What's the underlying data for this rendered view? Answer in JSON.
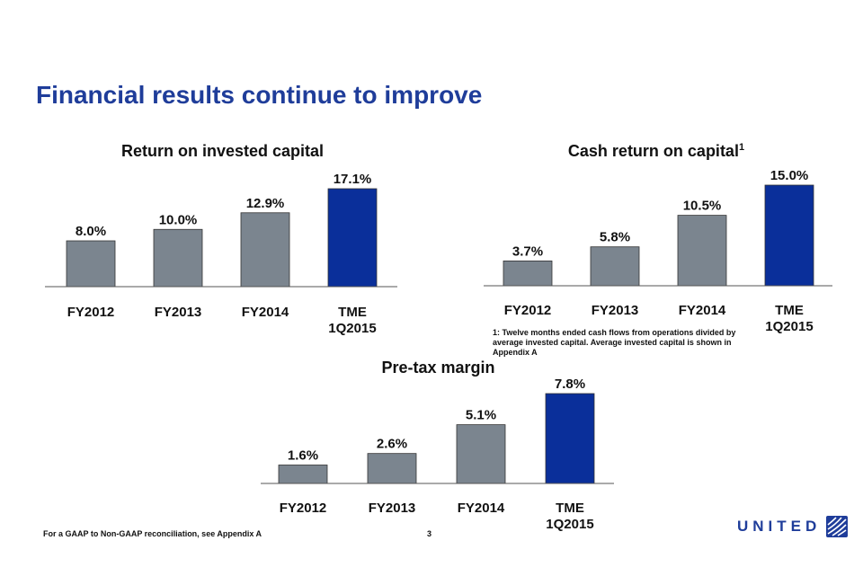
{
  "page": {
    "title": "Financial results continue to improve",
    "source_note": "For a GAAP to Non-GAAP reconciliation, see Appendix A",
    "page_number": "3",
    "logo_text": "UNITED",
    "footnote": "1: Twelve months ended cash flows from operations divided by average invested capital.  Average invested capital is shown in Appendix A"
  },
  "colors": {
    "title": "#1f3d9a",
    "bar_gray": "#7b858f",
    "bar_highlight": "#0a2f9a"
  },
  "chart_data": [
    {
      "type": "bar",
      "title": "Return on invested capital",
      "title_sup": "",
      "categories": [
        [
          "FY2012"
        ],
        [
          "FY2013"
        ],
        [
          "FY2014"
        ],
        [
          "TME",
          "1Q2015"
        ]
      ],
      "values": [
        8.0,
        10.0,
        12.9,
        17.1
      ],
      "data_labels": [
        "8.0%",
        "10.0%",
        "12.9%",
        "17.1%"
      ],
      "highlight_index": 3,
      "ylim": [
        0,
        17.1
      ],
      "xlabel": "",
      "ylabel": "",
      "grid": false,
      "legend": "none"
    },
    {
      "type": "bar",
      "title": "Cash return on capital",
      "title_sup": "1",
      "categories": [
        [
          "FY2012"
        ],
        [
          "FY2013"
        ],
        [
          "FY2014"
        ],
        [
          "TME",
          "1Q2015"
        ]
      ],
      "values": [
        3.7,
        5.8,
        10.5,
        15.0
      ],
      "data_labels": [
        "3.7%",
        "5.8%",
        "10.5%",
        "15.0%"
      ],
      "highlight_index": 3,
      "ylim": [
        0,
        15.0
      ],
      "xlabel": "",
      "ylabel": "",
      "grid": false,
      "legend": "none"
    },
    {
      "type": "bar",
      "title": "Pre-tax margin",
      "title_sup": "",
      "categories": [
        [
          "FY2012"
        ],
        [
          "FY2013"
        ],
        [
          "FY2014"
        ],
        [
          "TME",
          "1Q2015"
        ]
      ],
      "values": [
        1.6,
        2.6,
        5.1,
        7.8
      ],
      "data_labels": [
        "1.6%",
        "2.6%",
        "5.1%",
        "7.8%"
      ],
      "highlight_index": 3,
      "ylim": [
        0,
        7.8
      ],
      "xlabel": "",
      "ylabel": "",
      "grid": false,
      "legend": "none"
    }
  ]
}
